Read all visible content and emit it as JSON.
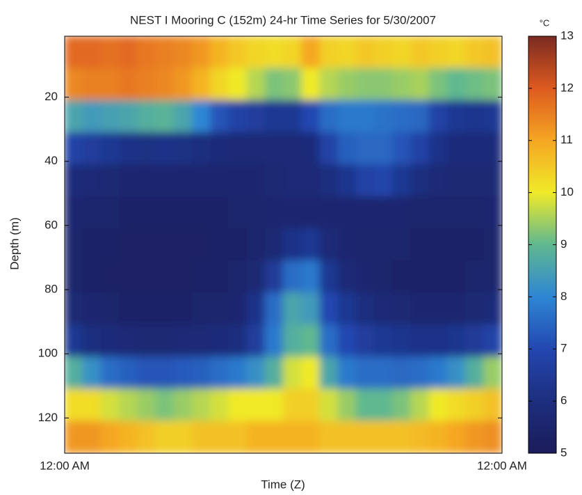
{
  "chart_data": {
    "type": "heatmap",
    "title": "NEST I Mooring C (152m) 24-hr Time Series for 5/30/2007",
    "x_label": "Time (Z)",
    "y_label": "Depth (m)",
    "colorbar_label": "°C",
    "xlim": [
      0,
      24
    ],
    "xticks": [
      {
        "value": 0,
        "label": "12:00 AM"
      },
      {
        "value": 24,
        "label": "12:00 AM"
      }
    ],
    "ylim": [
      131,
      1
    ],
    "yticks": [
      20,
      40,
      60,
      80,
      100,
      120
    ],
    "clim": [
      5,
      13
    ],
    "cticks": [
      5,
      6,
      7,
      8,
      9,
      10,
      11,
      12,
      13
    ],
    "colorscale": [
      "#1c1c5a",
      "#1d2e7e",
      "#2347b0",
      "#2e86d4",
      "#5fb890",
      "#f0ea28",
      "#f5a623",
      "#dd5a1f",
      "#7a2a22"
    ],
    "x": [
      0.5,
      1.5,
      2.5,
      3.5,
      4.5,
      5.5,
      6.5,
      7.5,
      8.5,
      9.5,
      10.5,
      11.5,
      12.5,
      13.5,
      14.5,
      15.5,
      16.5,
      17.5,
      18.5,
      19.5,
      20.5,
      21.5,
      22.5,
      23.5
    ],
    "y": [
      6,
      16,
      26,
      36,
      46,
      56,
      66,
      76,
      86,
      96,
      106,
      116,
      126
    ],
    "z": [
      [
        11.8,
        11.8,
        11.7,
        11.8,
        11.6,
        11.5,
        11.4,
        11.2,
        10.8,
        10.5,
        10.3,
        10.2,
        10.3,
        11,
        10.4,
        10.3,
        10.5,
        10.4,
        10.3,
        10.5,
        10.4,
        10.3,
        10.5,
        10.6
      ],
      [
        11.4,
        11.5,
        11.5,
        11.6,
        11.5,
        11.4,
        11.2,
        10.8,
        10.3,
        10,
        9.6,
        9.2,
        9.3,
        10,
        9.6,
        9.4,
        9.3,
        9.3,
        9.4,
        9.5,
        9.2,
        9,
        9.1,
        9.2
      ],
      [
        8.6,
        8.4,
        8.5,
        8.6,
        8.8,
        8.9,
        8.6,
        8,
        7.2,
        6.8,
        6.6,
        6.4,
        6.4,
        7,
        7.6,
        7.8,
        7.8,
        7.7,
        7.6,
        7.5,
        6.8,
        6.4,
        6.3,
        6.4
      ],
      [
        6.8,
        6.6,
        6.4,
        6.2,
        6.1,
        6.2,
        6.1,
        6,
        5.9,
        5.8,
        5.8,
        5.8,
        5.8,
        5.9,
        6.8,
        7.4,
        7.5,
        7.5,
        7.2,
        6.8,
        6.2,
        5.9,
        5.9,
        5.9
      ],
      [
        5.9,
        5.8,
        5.7,
        5.6,
        5.6,
        5.6,
        5.6,
        5.6,
        5.6,
        5.6,
        5.6,
        5.7,
        5.8,
        5.8,
        6,
        6.3,
        6.8,
        6.9,
        6.4,
        6,
        5.8,
        5.7,
        5.7,
        5.7
      ],
      [
        5.6,
        5.5,
        5.5,
        5.4,
        5.4,
        5.4,
        5.4,
        5.4,
        5.4,
        5.5,
        5.5,
        5.6,
        5.6,
        5.6,
        5.6,
        5.6,
        5.6,
        5.6,
        5.6,
        5.5,
        5.5,
        5.5,
        5.5,
        5.6
      ],
      [
        5.5,
        5.4,
        5.4,
        5.3,
        5.3,
        5.3,
        5.3,
        5.3,
        5.4,
        5.4,
        5.5,
        5.7,
        6.2,
        6.4,
        5.8,
        5.6,
        5.5,
        5.5,
        5.5,
        5.4,
        5.4,
        5.4,
        5.4,
        5.5
      ],
      [
        5.5,
        5.4,
        5.3,
        5.3,
        5.3,
        5.3,
        5.3,
        5.4,
        5.4,
        5.5,
        5.7,
        6.5,
        7.6,
        7.8,
        6.4,
        5.8,
        5.6,
        5.5,
        5.4,
        5.4,
        5.4,
        5.4,
        5.5,
        5.5
      ],
      [
        5.7,
        5.6,
        5.5,
        5.4,
        5.4,
        5.4,
        5.4,
        5.5,
        5.5,
        5.6,
        6.2,
        7.6,
        8.6,
        8.4,
        7,
        6.4,
        6,
        5.8,
        5.7,
        5.6,
        5.6,
        5.6,
        5.7,
        5.9
      ],
      [
        6.4,
        6,
        5.9,
        5.8,
        5.7,
        5.7,
        5.8,
        5.8,
        5.9,
        6,
        6.6,
        7.8,
        8.8,
        9,
        7.6,
        7,
        6.6,
        6.4,
        6.3,
        6.2,
        6.2,
        6.3,
        6.5,
        6.8
      ],
      [
        8.8,
        8.2,
        7.6,
        7.4,
        7.2,
        7.2,
        7.3,
        7.4,
        7.6,
        7.8,
        8.2,
        8.8,
        9.8,
        10,
        8.6,
        7.8,
        7.6,
        7.6,
        7.5,
        7.6,
        7.8,
        8.2,
        8.8,
        9.4
      ],
      [
        10.2,
        10.2,
        9.8,
        9.6,
        9.4,
        9.2,
        9.4,
        9.6,
        9.8,
        10,
        10,
        10,
        10.4,
        10.4,
        9.8,
        9.4,
        9,
        9,
        9.2,
        9.6,
        10,
        10.2,
        10.4,
        10.6
      ],
      [
        11.2,
        11.2,
        11,
        10.8,
        10.6,
        10.4,
        10.4,
        10.6,
        10.6,
        10.6,
        10.8,
        10.8,
        10.8,
        10.8,
        10.6,
        10.6,
        10.6,
        10.6,
        10.6,
        10.7,
        10.8,
        11,
        11.2,
        11.3
      ]
    ]
  }
}
